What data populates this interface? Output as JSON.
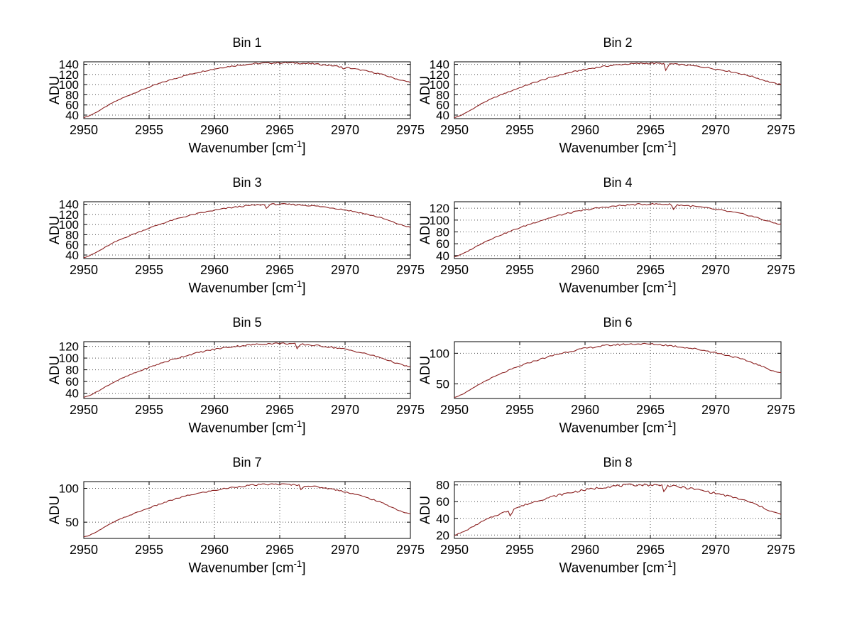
{
  "figure": {
    "background": "#ffffff",
    "line_color": "#8b2020",
    "grid_color": "#555555",
    "axis_color": "#000000",
    "text_color": "#000000"
  },
  "labels": {
    "xlabel_pre": "Wavenumber [cm",
    "xlabel_sup": "-1",
    "xlabel_post": "]"
  },
  "xlim": [
    2950,
    2975
  ],
  "xticks": [
    2950,
    2955,
    2960,
    2965,
    2970,
    2975
  ],
  "chart_data": [
    {
      "type": "line",
      "title": "Bin 1",
      "xlabel": "Wavenumber [cm^-1]",
      "ylabel": "ADU",
      "x": [
        2950,
        2952.5,
        2955,
        2957.5,
        2960,
        2962.5,
        2965,
        2967.5,
        2970,
        2972.5,
        2975
      ],
      "y": [
        35,
        68,
        95,
        116,
        131,
        140,
        143,
        141,
        134,
        122,
        105
      ],
      "yticks": [
        40,
        60,
        80,
        100,
        120,
        140
      ],
      "ylim": [
        33,
        145
      ],
      "noise": 1.5,
      "dips": [
        {
          "x": 2969.9,
          "y": 131
        }
      ]
    },
    {
      "type": "line",
      "title": "Bin 2",
      "xlabel": "Wavenumber [cm^-1]",
      "ylabel": "ADU",
      "x": [
        2950,
        2952.5,
        2955,
        2957.5,
        2960,
        2962.5,
        2965,
        2967.5,
        2970,
        2972.5,
        2975
      ],
      "y": [
        35,
        68,
        94,
        115,
        130,
        139,
        142,
        139,
        131,
        118,
        100
      ],
      "yticks": [
        40,
        60,
        80,
        100,
        120,
        140
      ],
      "ylim": [
        33,
        145
      ],
      "noise": 1.5,
      "dips": [
        {
          "x": 2966.2,
          "y": 128
        }
      ]
    },
    {
      "type": "line",
      "title": "Bin 3",
      "xlabel": "Wavenumber [cm^-1]",
      "ylabel": "ADU",
      "x": [
        2950,
        2952.5,
        2955,
        2957.5,
        2960,
        2962.5,
        2965,
        2967.5,
        2970,
        2972.5,
        2975
      ],
      "y": [
        35,
        67,
        93,
        114,
        128,
        137,
        140,
        137,
        129,
        115,
        95
      ],
      "yticks": [
        40,
        60,
        80,
        100,
        120,
        140
      ],
      "ylim": [
        33,
        145
      ],
      "noise": 1.5,
      "dips": [
        {
          "x": 2963.9,
          "y": 132
        }
      ]
    },
    {
      "type": "line",
      "title": "Bin 4",
      "xlabel": "Wavenumber [cm^-1]",
      "ylabel": "ADU",
      "x": [
        2950,
        2952.5,
        2955,
        2957.5,
        2960,
        2962.5,
        2965,
        2967.5,
        2970,
        2972.5,
        2975
      ],
      "y": [
        38,
        65,
        87,
        105,
        117,
        124,
        127,
        125,
        118,
        108,
        93
      ],
      "yticks": [
        40,
        60,
        80,
        100,
        120
      ],
      "ylim": [
        35,
        131
      ],
      "noise": 1.5,
      "dips": [
        {
          "x": 2966.7,
          "y": 118
        }
      ]
    },
    {
      "type": "line",
      "title": "Bin 5",
      "xlabel": "Wavenumber [cm^-1]",
      "ylabel": "ADU",
      "x": [
        2950,
        2952.5,
        2955,
        2957.5,
        2960,
        2962.5,
        2965,
        2967.5,
        2970,
        2972.5,
        2975
      ],
      "y": [
        33,
        61,
        84,
        102,
        115,
        122,
        125,
        122,
        115,
        102,
        85
      ],
      "yticks": [
        40,
        60,
        80,
        100,
        120
      ],
      "ylim": [
        31,
        128
      ],
      "noise": 1.5,
      "dips": [
        {
          "x": 2966.3,
          "y": 116
        }
      ]
    },
    {
      "type": "line",
      "title": "Bin 6",
      "xlabel": "Wavenumber [cm^-1]",
      "ylabel": "ADU",
      "x": [
        2950,
        2952.5,
        2955,
        2957.5,
        2960,
        2962.5,
        2965,
        2967.5,
        2970,
        2972.5,
        2975
      ],
      "y": [
        28,
        56,
        79,
        96,
        108,
        114,
        115,
        110,
        101,
        87,
        68
      ],
      "yticks": [
        50,
        100
      ],
      "ylim": [
        26,
        119
      ],
      "noise": 1.5,
      "dips": []
    },
    {
      "type": "line",
      "title": "Bin 7",
      "xlabel": "Wavenumber [cm^-1]",
      "ylabel": "ADU",
      "x": [
        2950,
        2952.5,
        2955,
        2957.5,
        2960,
        2962.5,
        2965,
        2967.5,
        2970,
        2972.5,
        2975
      ],
      "y": [
        28,
        52,
        71,
        87,
        97,
        104,
        106,
        103,
        95,
        81,
        62
      ],
      "yticks": [
        50,
        100
      ],
      "ylim": [
        26,
        110
      ],
      "noise": 1.2,
      "dips": [
        {
          "x": 2966.6,
          "y": 98
        }
      ]
    },
    {
      "type": "line",
      "title": "Bin 8",
      "xlabel": "Wavenumber [cm^-1]",
      "ylabel": "ADU",
      "x": [
        2950,
        2952.5,
        2955,
        2957.5,
        2960,
        2962.5,
        2965,
        2967.5,
        2970,
        2972.5,
        2975
      ],
      "y": [
        20,
        39,
        54,
        66,
        74,
        79,
        80,
        77,
        70,
        60,
        45
      ],
      "yticks": [
        20,
        40,
        60,
        80
      ],
      "ylim": [
        16,
        84
      ],
      "noise": 1.5,
      "dips": [
        {
          "x": 2954.2,
          "y": 43
        },
        {
          "x": 2966.1,
          "y": 72
        }
      ]
    }
  ]
}
